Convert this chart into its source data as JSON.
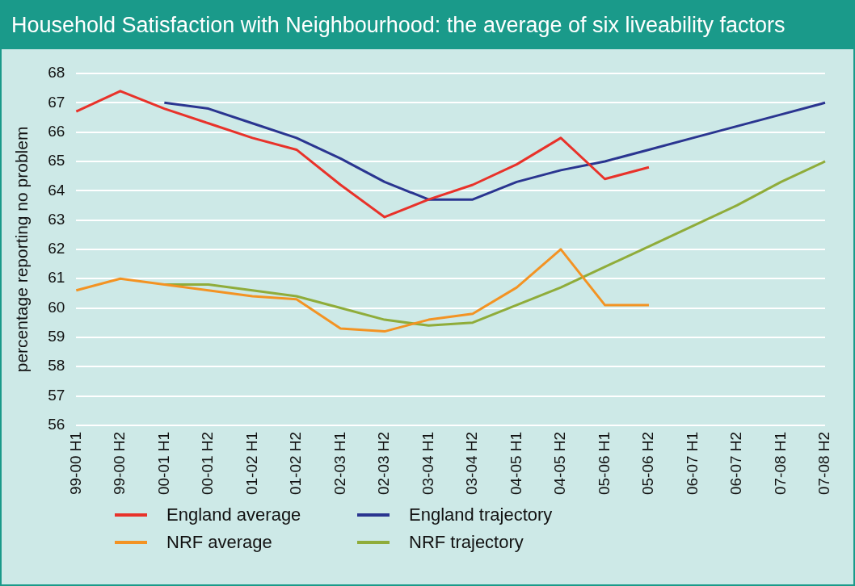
{
  "chart_data": {
    "type": "line",
    "title": "Household Satisfaction with Neighbourhood: the average of six liveability factors",
    "ylabel": "percentage reporting no problem",
    "categories": [
      "99-00 H1",
      "99-00 H2",
      "00-01 H1",
      "00-01 H2",
      "01-02 H1",
      "01-02 H2",
      "02-03 H1",
      "02-03 H2",
      "03-04 H1",
      "03-04 H2",
      "04-05 H1",
      "04-05 H2",
      "05-06 H1",
      "05-06 H2",
      "06-07 H1",
      "06-07 H2",
      "07-08 H1",
      "07-08 H2"
    ],
    "series": [
      {
        "name": "England average",
        "color": "#e8322a",
        "values": [
          66.7,
          67.4,
          66.8,
          66.3,
          65.8,
          65.4,
          64.2,
          63.1,
          63.7,
          64.2,
          64.9,
          65.8,
          64.4,
          64.8,
          null,
          null,
          null,
          null
        ]
      },
      {
        "name": "England trajectory",
        "color": "#2a3590",
        "values": [
          null,
          null,
          67.0,
          66.8,
          66.3,
          65.8,
          65.1,
          64.3,
          63.7,
          63.7,
          64.3,
          64.7,
          65.0,
          65.4,
          65.8,
          66.2,
          66.6,
          67.0
        ]
      },
      {
        "name": "NRF average",
        "color": "#f39323",
        "values": [
          60.6,
          61.0,
          60.8,
          60.6,
          60.4,
          60.3,
          59.3,
          59.2,
          59.6,
          59.8,
          60.7,
          62.0,
          60.1,
          60.1,
          null,
          null,
          null,
          null
        ]
      },
      {
        "name": "NRF trajectory",
        "color": "#8fac3a",
        "values": [
          null,
          null,
          60.8,
          60.8,
          60.6,
          60.4,
          60.0,
          59.6,
          59.4,
          59.5,
          60.1,
          60.7,
          61.4,
          62.1,
          62.8,
          63.5,
          64.3,
          65.0
        ]
      }
    ],
    "ylim": [
      56,
      68
    ],
    "yticks": [
      56,
      57,
      58,
      59,
      60,
      61,
      62,
      63,
      64,
      65,
      66,
      67,
      68
    ],
    "grid": "y",
    "legend": "bottom",
    "marker": "none",
    "line_style": "solid"
  }
}
